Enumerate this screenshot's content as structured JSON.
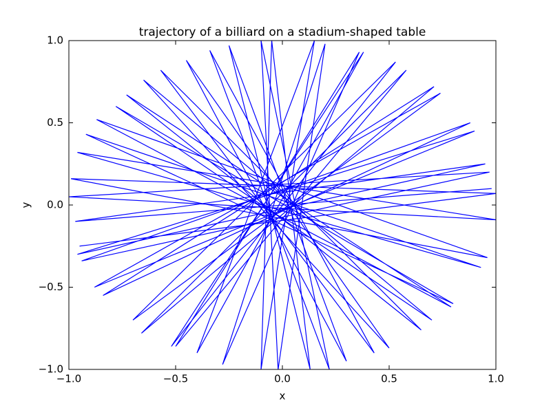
{
  "chart_data": {
    "type": "line",
    "title": "trajectory of a billiard on a stadium-shaped table",
    "x_label": "x",
    "y_label": "y",
    "x": [
      0.98,
      -0.97,
      0.95,
      -0.96,
      0.9,
      -0.88,
      0.74,
      -0.7,
      0.53,
      -0.52,
      0.38,
      -0.4,
      0.15,
      -0.1,
      -0.05,
      0.13,
      -0.25,
      0.3,
      -0.45,
      0.5,
      -0.65,
      0.7,
      -0.78,
      0.8,
      -0.92,
      0.93,
      -0.96,
      1.0,
      -1.0,
      0.97,
      -0.94,
      0.88,
      -0.84,
      0.71,
      -0.66,
      0.58,
      -0.5,
      0.36,
      -0.28,
      0.2,
      -0.02,
      -0.1,
      0.22,
      -0.34,
      0.43,
      -0.57,
      0.65,
      -0.73,
      0.79,
      -0.87,
      0.96,
      -0.99,
      1.0,
      -0.95
    ],
    "series": [
      {
        "color": "#0000ff",
        "values": [
          0.1,
          -0.1,
          0.25,
          -0.3,
          0.45,
          -0.5,
          0.68,
          -0.7,
          0.87,
          -0.86,
          0.93,
          -0.9,
          1.0,
          -1.0,
          1.0,
          -1.0,
          0.97,
          -0.95,
          0.88,
          -0.87,
          0.76,
          -0.7,
          0.6,
          -0.6,
          0.43,
          -0.38,
          0.32,
          -0.09,
          0.05,
          0.2,
          -0.34,
          0.5,
          -0.55,
          0.72,
          -0.78,
          0.82,
          -0.86,
          0.93,
          -0.97,
          0.98,
          -1.0,
          1.0,
          -1.0,
          0.94,
          -0.9,
          0.82,
          -0.76,
          0.67,
          -0.62,
          0.52,
          -0.32,
          0.16,
          0.07,
          -0.25
        ]
      }
    ],
    "xlim": [
      -1.0,
      1.0
    ],
    "ylim": [
      -1.0,
      1.0
    ],
    "xticks": [
      {
        "value": -1.0,
        "label": "−1.0"
      },
      {
        "value": -0.5,
        "label": "−0.5"
      },
      {
        "value": 0,
        "label": "0.0"
      },
      0.5,
      {
        "value": 1.0,
        "label": "1.0"
      }
    ],
    "yticks": [
      {
        "value": -1.0,
        "label": "−1.0"
      },
      {
        "value": -0.5,
        "label": "−0.5"
      },
      {
        "value": 0,
        "label": "0.0"
      },
      0.5,
      {
        "value": 1.0,
        "label": "1.0"
      }
    ],
    "grid": false
  }
}
